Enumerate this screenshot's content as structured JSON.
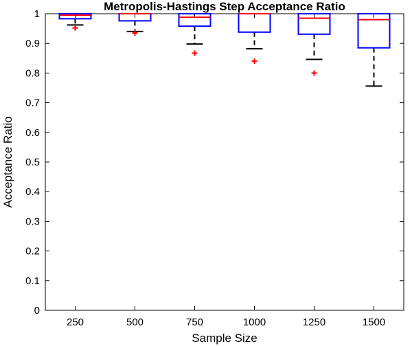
{
  "chart_data": {
    "type": "boxplot",
    "title": "Metropolis-Hastings Step Acceptance Ratio",
    "xlabel": "Sample Size",
    "ylabel": "Acceptance Ratio",
    "ylim": [
      0,
      1
    ],
    "yticks": [
      "0",
      "0.1",
      "0.2",
      "0.3",
      "0.4",
      "0.5",
      "0.6",
      "0.7",
      "0.8",
      "0.9",
      "1"
    ],
    "categories": [
      "250",
      "500",
      "750",
      "1000",
      "1250",
      "1500"
    ],
    "boxes": [
      {
        "category": "250",
        "whisker_low": 0.962,
        "q1": 0.983,
        "median": 0.995,
        "q3": 1.0,
        "whisker_high": 1.0,
        "outliers": [
          0.952
        ]
      },
      {
        "category": "500",
        "whisker_low": 0.94,
        "q1": 0.976,
        "median": 1.0,
        "q3": 1.0,
        "whisker_high": 1.0,
        "outliers": [
          0.935
        ]
      },
      {
        "category": "750",
        "whisker_low": 0.898,
        "q1": 0.958,
        "median": 0.988,
        "q3": 1.0,
        "whisker_high": 1.0,
        "outliers": [
          0.867
        ]
      },
      {
        "category": "1000",
        "whisker_low": 0.882,
        "q1": 0.938,
        "median": 1.0,
        "q3": 1.0,
        "whisker_high": 1.0,
        "outliers": [
          0.84
        ]
      },
      {
        "category": "1250",
        "whisker_low": 0.846,
        "q1": 0.931,
        "median": 0.985,
        "q3": 1.0,
        "whisker_high": 1.0,
        "outliers": [
          0.8
        ]
      },
      {
        "category": "1500",
        "whisker_low": 0.756,
        "q1": 0.885,
        "median": 0.98,
        "q3": 1.0,
        "whisker_high": 1.0,
        "outliers": []
      }
    ],
    "grid": false,
    "colors": {
      "box": "#0000ff",
      "median": "#ff0000",
      "whisker": "#000000",
      "outlier": "#ff0000"
    }
  }
}
